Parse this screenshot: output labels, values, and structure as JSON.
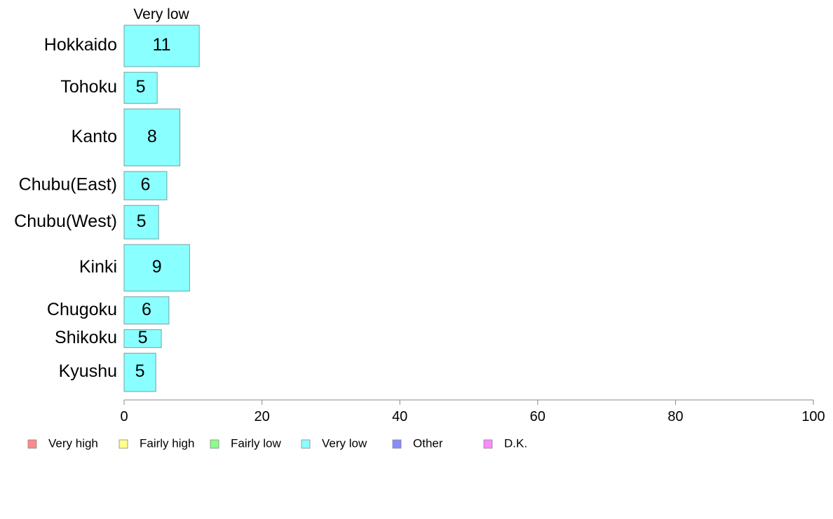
{
  "chart_data": {
    "type": "bar",
    "orientation": "horizontal",
    "stacked": true,
    "categories": [
      "Hokkaido",
      "Tohoku",
      "Kanto",
      "Chubu(East)",
      "Chubu(West)",
      "Kinki",
      "Chugoku",
      "Shikoku",
      "Kyushu"
    ],
    "category_weights": [
      1.2,
      0.9,
      1.65,
      0.82,
      0.97,
      1.35,
      0.79,
      0.52,
      1.11
    ],
    "series": [
      {
        "name": "Very high",
        "color": "#ff8a8a",
        "values": [
          0,
          0,
          0,
          0,
          0,
          0,
          0,
          0,
          0
        ]
      },
      {
        "name": "Fairly high",
        "color": "#ffff8a",
        "values": [
          0,
          0,
          0,
          0,
          0,
          0,
          0,
          0,
          0
        ]
      },
      {
        "name": "Fairly low",
        "color": "#8aff8a",
        "values": [
          0,
          0,
          0,
          0,
          0,
          0,
          0,
          0,
          0
        ]
      },
      {
        "name": "Very low",
        "color": "#8affff",
        "values": [
          10.9,
          4.8,
          8.1,
          6.2,
          5.0,
          9.5,
          6.5,
          5.4,
          4.6
        ],
        "labels": [
          "11",
          "5",
          "8",
          "6",
          "5",
          "9",
          "6",
          "5",
          "5"
        ]
      },
      {
        "name": "Other",
        "color": "#8a8aff",
        "values": [
          0,
          0,
          0,
          0,
          0,
          0,
          0,
          0,
          0
        ]
      },
      {
        "name": "D.K.",
        "color": "#ff8aff",
        "values": [
          0,
          0,
          0,
          0,
          0,
          0,
          0,
          0,
          0
        ]
      }
    ],
    "series_header": "Very low",
    "xlim": [
      0,
      100
    ],
    "xticks": [
      "0",
      "20",
      "40",
      "60",
      "80",
      "100"
    ],
    "grid": false,
    "legend_position": "bottom",
    "bar_border_color": "#6fa3a3",
    "axis_color": "#888888"
  }
}
